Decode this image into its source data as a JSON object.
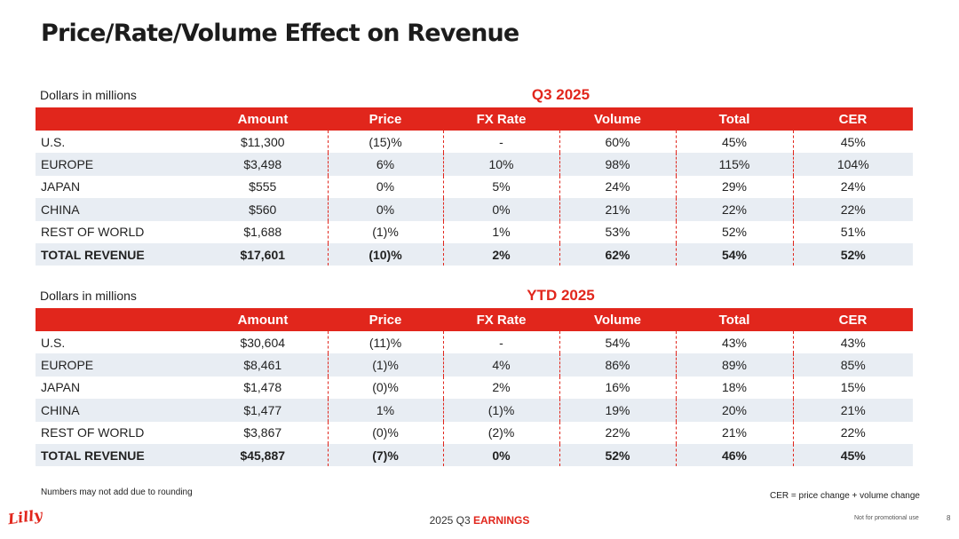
{
  "title": "Price/Rate/Volume Effect on Revenue",
  "columns": [
    "",
    "Amount",
    "Price",
    "FX Rate",
    "Volume",
    "Total",
    "CER"
  ],
  "tables": [
    {
      "units": "Dollars in millions",
      "period": "Q3 2025",
      "rows": [
        [
          "U.S.",
          "$11,300",
          "(15)%",
          "-",
          "60%",
          "45%",
          "45%"
        ],
        [
          "EUROPE",
          "$3,498",
          "6%",
          "10%",
          "98%",
          "115%",
          "104%"
        ],
        [
          "JAPAN",
          "$555",
          "0%",
          "5%",
          "24%",
          "29%",
          "24%"
        ],
        [
          "CHINA",
          "$560",
          "0%",
          "0%",
          "21%",
          "22%",
          "22%"
        ],
        [
          "REST OF WORLD",
          "$1,688",
          "(1)%",
          "1%",
          "53%",
          "52%",
          "51%"
        ],
        [
          "TOTAL REVENUE",
          "$17,601",
          "(10)%",
          "2%",
          "62%",
          "54%",
          "52%"
        ]
      ]
    },
    {
      "units": "Dollars in millions",
      "period": "YTD 2025",
      "rows": [
        [
          "U.S.",
          "$30,604",
          "(11)%",
          "-",
          "54%",
          "43%",
          "43%"
        ],
        [
          "EUROPE",
          "$8,461",
          "(1)%",
          "4%",
          "86%",
          "89%",
          "85%"
        ],
        [
          "JAPAN",
          "$1,478",
          "(0)%",
          "2%",
          "16%",
          "18%",
          "15%"
        ],
        [
          "CHINA",
          "$1,477",
          "1%",
          "(1)%",
          "19%",
          "20%",
          "21%"
        ],
        [
          "REST OF WORLD",
          "$3,867",
          "(0)%",
          "(2)%",
          "22%",
          "21%",
          "22%"
        ],
        [
          "TOTAL REVENUE",
          "$45,887",
          "(7)%",
          "0%",
          "52%",
          "46%",
          "45%"
        ]
      ]
    }
  ],
  "notes": {
    "rounding": "Numbers may not add due to rounding",
    "cer": "CER = price change + volume change"
  },
  "footer": {
    "year_quarter": "2025 Q3",
    "earnings": "EARNINGS",
    "promo": "Not for promotional use",
    "page": "8",
    "logo_text": "Lilly"
  },
  "colors": {
    "accent": "#e1261c",
    "shade": "#e8edf3"
  }
}
